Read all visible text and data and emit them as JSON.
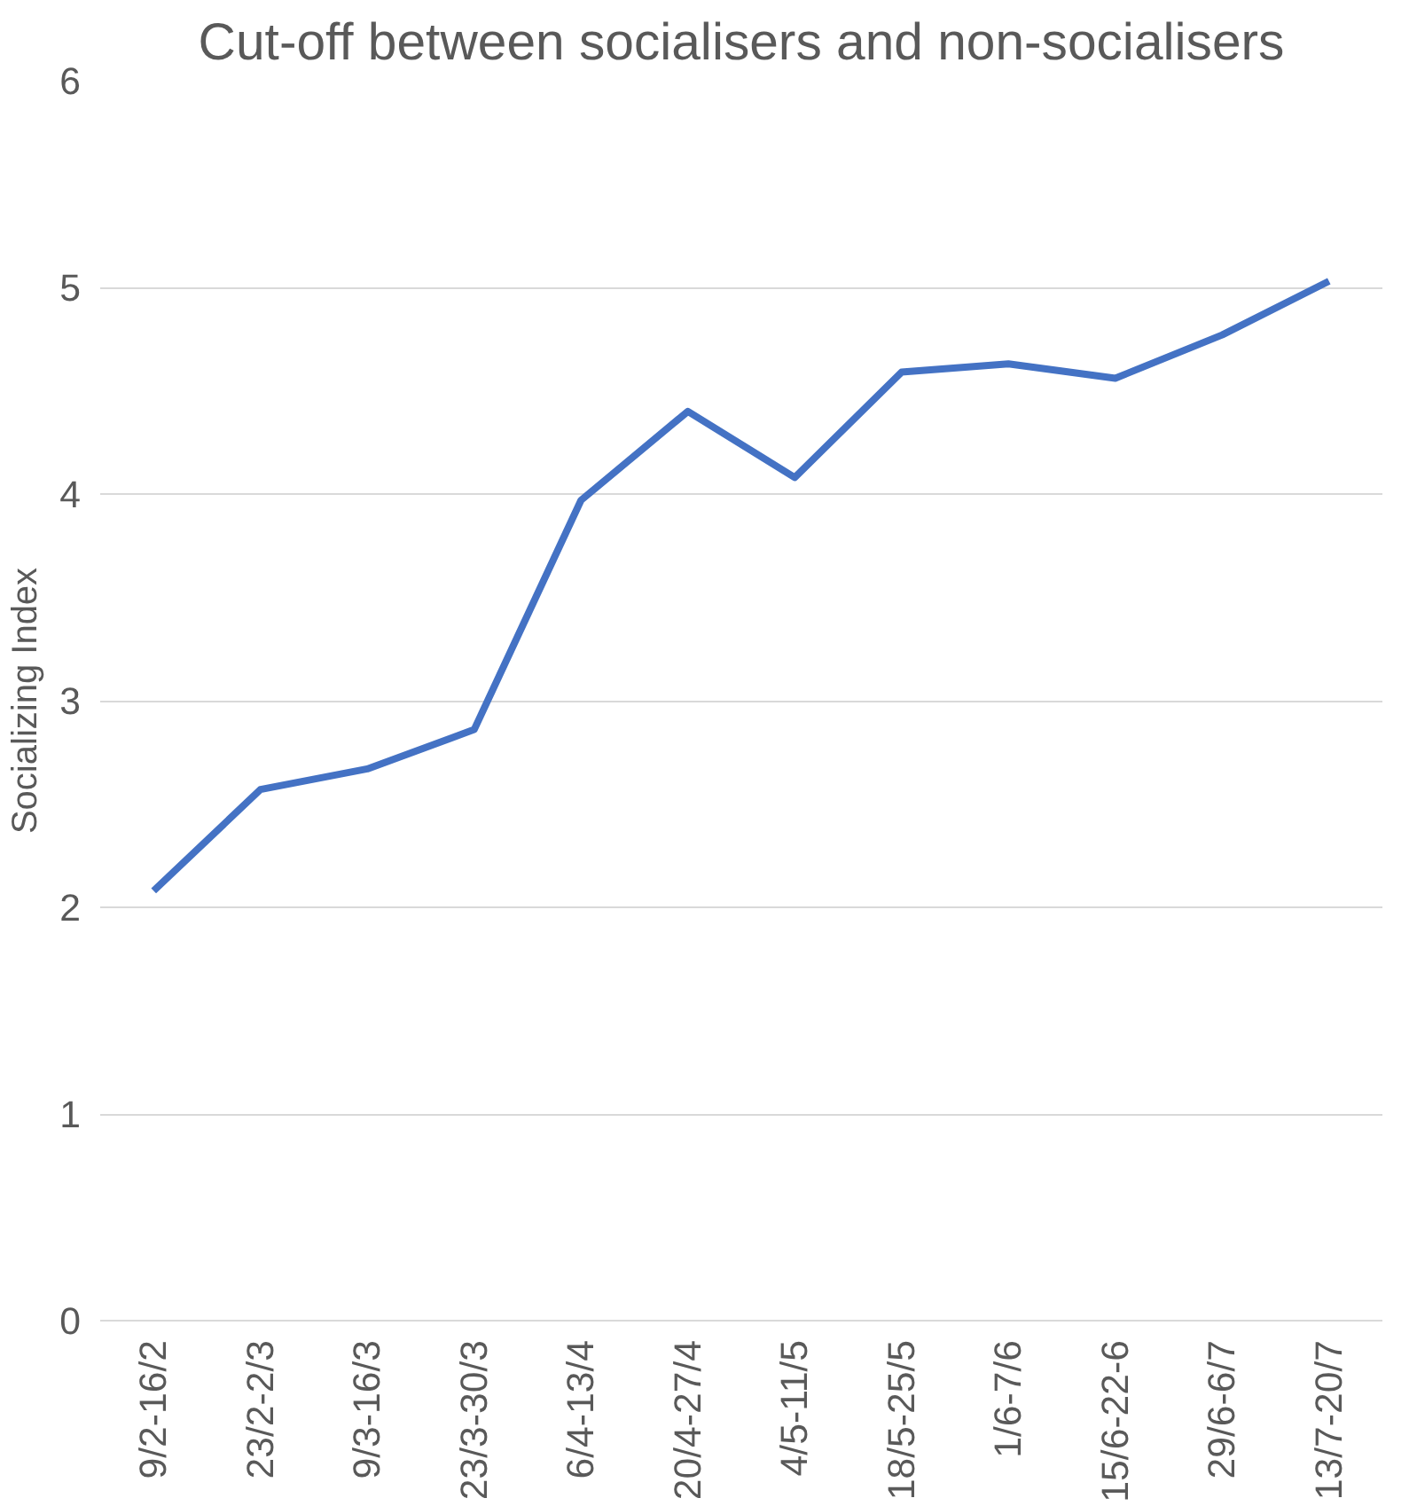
{
  "chart_data": {
    "type": "line",
    "title": "Cut-off between socialisers and non-socialisers",
    "ylabel": "Socializing Index",
    "categories": [
      "9/2-16/2",
      "23/2-2/3",
      "9/3-16/3",
      "23/3-30/3",
      "6/4-13/4",
      "20/4-27/4",
      "4/5-11/5",
      "18/5-25/5",
      "1/6-7/6",
      "15/6-22-6",
      "29/6-6/7",
      "13/7-20/7"
    ],
    "series": [
      {
        "color": "#4472c4",
        "values": [
          2.08,
          2.57,
          2.67,
          2.86,
          3.97,
          4.4,
          4.08,
          4.59,
          4.63,
          4.56,
          4.77,
          5.03
        ]
      }
    ],
    "ylim": [
      0,
      6
    ],
    "yticks": [
      0,
      1,
      2,
      3,
      4,
      5,
      6
    ],
    "grid": "y",
    "marker": "none",
    "line_style": "solid"
  }
}
